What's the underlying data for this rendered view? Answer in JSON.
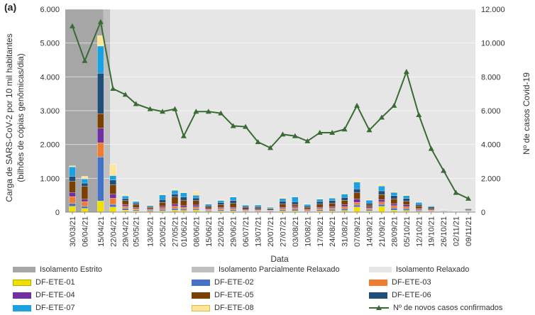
{
  "panel_label": "(a)",
  "chart_data": {
    "type": "bar",
    "ylabel": "Carga de SARS-CoV-2 por 10 mil habitantes",
    "ylabel_line2": "(bilhões de cópias genômicas/dia)",
    "y2label": "Nº de casos Covid-19",
    "xlabel": "Data",
    "ylim": [
      0,
      6000
    ],
    "y2lim": [
      0,
      12000
    ],
    "yticks": [
      "0",
      "1.000",
      "2.000",
      "3.000",
      "4.000",
      "5.000",
      "6.000"
    ],
    "y2ticks": [
      "0",
      "2.000",
      "4.000",
      "6.000",
      "8.000",
      "10.000",
      "12.000"
    ],
    "categories": [
      "30/03/21",
      "06/04/21",
      "15/04/21",
      "22/04/21",
      "29/04/21",
      "05/05/21",
      "13/05/21",
      "20/05/21",
      "27/05/21",
      "01/06/21",
      "08/06/21",
      "15/06/21",
      "22/06/21",
      "29/06/21",
      "06/07/21",
      "13/07/21",
      "20/07/21",
      "27/07/21",
      "03/08/21",
      "10/08/21",
      "17/08/21",
      "24/08/21",
      "31/08/21",
      "07/09/21",
      "14/09/21",
      "21/09/21",
      "28/09/21",
      "05/10/21",
      "12/10/21",
      "19/10/21",
      "26/10/21",
      "02/11/21",
      "09/11/21"
    ],
    "bar_dates": [
      "30/03/21",
      "06/04/21",
      "15/04/21",
      "22/04/21",
      "29/04/21",
      "05/05/21",
      "13/05/21",
      "20/05/21",
      "27/05/21",
      "01/06/21",
      "08/06/21",
      "15/06/21",
      "22/06/21",
      "29/06/21",
      "06/07/21",
      "13/07/21",
      "20/07/21",
      "27/07/21",
      "03/08/21",
      "10/08/21",
      "17/08/21",
      "24/08/21",
      "31/08/21",
      "07/09/21",
      "14/09/21",
      "21/09/21",
      "28/09/21",
      "05/10/21",
      "12/10/21",
      "19/10/21",
      "26/10/21",
      "02/11/21",
      "09/11/21"
    ],
    "series": [
      {
        "name": "DF-ETE-01",
        "color": "#f0e000",
        "values": [
          170,
          110,
          330,
          150,
          60,
          40,
          25,
          40,
          55,
          50,
          55,
          25,
          35,
          35,
          20,
          20,
          15,
          35,
          40,
          20,
          35,
          40,
          50,
          150,
          40,
          170,
          60,
          50,
          30,
          20,
          8,
          6,
          15
        ]
      },
      {
        "name": "DF-ETE-02",
        "color": "#4472c4",
        "values": [
          90,
          60,
          1300,
          80,
          50,
          30,
          20,
          40,
          50,
          40,
          40,
          25,
          35,
          35,
          20,
          20,
          15,
          35,
          45,
          20,
          35,
          40,
          50,
          60,
          35,
          60,
          60,
          50,
          25,
          20,
          8,
          6,
          12
        ]
      },
      {
        "name": "DF-ETE-03",
        "color": "#ed7d31",
        "values": [
          200,
          140,
          420,
          180,
          60,
          35,
          25,
          50,
          70,
          50,
          60,
          30,
          40,
          40,
          20,
          20,
          15,
          40,
          45,
          25,
          40,
          45,
          60,
          80,
          40,
          70,
          70,
          60,
          30,
          20,
          8,
          6,
          15
        ]
      },
      {
        "name": "DF-ETE-04",
        "color": "#7030a0",
        "values": [
          120,
          70,
          430,
          120,
          50,
          30,
          20,
          40,
          60,
          50,
          55,
          25,
          35,
          35,
          20,
          20,
          15,
          35,
          40,
          20,
          35,
          40,
          55,
          100,
          35,
          70,
          60,
          55,
          25,
          20,
          8,
          6,
          12
        ]
      },
      {
        "name": "DF-ETE-05",
        "color": "#7b3f00",
        "values": [
          330,
          380,
          430,
          280,
          120,
          90,
          50,
          120,
          210,
          160,
          130,
          55,
          80,
          110,
          50,
          45,
          30,
          100,
          60,
          55,
          90,
          100,
          130,
          180,
          60,
          150,
          140,
          110,
          70,
          40,
          12,
          8,
          25
        ]
      },
      {
        "name": "DF-ETE-06",
        "color": "#1f4e79",
        "values": [
          150,
          100,
          1200,
          140,
          60,
          40,
          25,
          80,
          90,
          100,
          80,
          40,
          60,
          90,
          40,
          40,
          25,
          80,
          80,
          40,
          80,
          80,
          90,
          120,
          60,
          110,
          100,
          80,
          50,
          30,
          8,
          6,
          15
        ]
      },
      {
        "name": "DF-ETE-07",
        "color": "#1ba1e2",
        "values": [
          280,
          120,
          800,
          130,
          80,
          50,
          30,
          140,
          110,
          120,
          80,
          40,
          60,
          100,
          40,
          45,
          30,
          80,
          140,
          50,
          70,
          70,
          100,
          200,
          80,
          140,
          90,
          80,
          60,
          30,
          10,
          8,
          20
        ]
      },
      {
        "name": "DF-ETE-08",
        "color": "#ffe699",
        "values": [
          30,
          80,
          310,
          330,
          40,
          25,
          15,
          40,
          35,
          30,
          100,
          15,
          25,
          20,
          10,
          10,
          10,
          35,
          20,
          10,
          20,
          25,
          25,
          60,
          20,
          50,
          40,
          30,
          20,
          10,
          4,
          4,
          6
        ]
      }
    ],
    "line_series": {
      "name": "Nº de novos casos confirmados",
      "color": "#3a6b35",
      "points": [
        {
          "date": "30/03/21",
          "value": 11000
        },
        {
          "date": "06/04/21",
          "value": 8950
        },
        {
          "date": "15/04/21",
          "value": 11250
        },
        {
          "date": "22/04/21",
          "value": 7300
        },
        {
          "date": "29/04/21",
          "value": 6950
        },
        {
          "date": "05/05/21",
          "value": 6400
        },
        {
          "date": "13/05/21",
          "value": 6100
        },
        {
          "date": "20/05/21",
          "value": 5950
        },
        {
          "date": "27/05/21",
          "value": 6100
        },
        {
          "date": "01/06/21",
          "value": 4500
        },
        {
          "date": "08/06/21",
          "value": 5950
        },
        {
          "date": "15/06/21",
          "value": 5950
        },
        {
          "date": "22/06/21",
          "value": 5850
        },
        {
          "date": "29/06/21",
          "value": 5100
        },
        {
          "date": "06/07/21",
          "value": 5050
        },
        {
          "date": "13/07/21",
          "value": 4150
        },
        {
          "date": "20/07/21",
          "value": 3800
        },
        {
          "date": "27/07/21",
          "value": 4600
        },
        {
          "date": "03/08/21",
          "value": 4500
        },
        {
          "date": "10/08/21",
          "value": 4200
        },
        {
          "date": "17/08/21",
          "value": 4700
        },
        {
          "date": "24/08/21",
          "value": 4700
        },
        {
          "date": "31/08/21",
          "value": 4900
        },
        {
          "date": "07/09/21",
          "value": 6300
        },
        {
          "date": "14/09/21",
          "value": 4850
        },
        {
          "date": "21/09/21",
          "value": 5600
        },
        {
          "date": "28/09/21",
          "value": 6300
        },
        {
          "date": "05/10/21",
          "value": 8300
        },
        {
          "date": "12/10/21",
          "value": 5750
        },
        {
          "date": "19/10/21",
          "value": 3750
        },
        {
          "date": "26/10/21",
          "value": 2450
        },
        {
          "date": "02/11/21",
          "value": 1150
        },
        {
          "date": "09/11/21",
          "value": 800
        }
      ]
    },
    "periods": [
      {
        "name": "Isolamento Estrito",
        "start": "30/03/21",
        "end": "15/04/21",
        "color": "#a6a6a6"
      },
      {
        "name": "Isolamento Parcialmente Relaxado",
        "start": "15/04/21",
        "end": "22/04/21",
        "color": "#bfbfbf"
      },
      {
        "name": "Isolamento Relaxado",
        "start": "22/04/21",
        "end": "09/11/21",
        "color": "#e6e6e6"
      }
    ]
  }
}
